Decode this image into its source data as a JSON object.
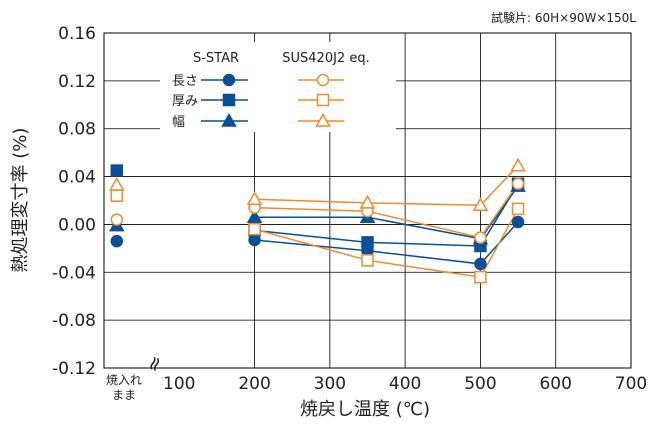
{
  "specimen_note": "試験片: 60H×90W×150L",
  "chart_data": {
    "type": "line",
    "xlabel": "焼戻し温度 (℃)",
    "ylabel": "熱処理変寸率 (%)",
    "xlim": [
      0,
      700
    ],
    "ylim": [
      -0.12,
      0.16
    ],
    "x_ticks": [
      "100",
      "200",
      "300",
      "400",
      "500",
      "600",
      "700"
    ],
    "y_ticks": [
      "0.16",
      "0.12",
      "0.08",
      "0.04",
      "0.00",
      "-0.04",
      "-0.08",
      "-0.12"
    ],
    "as_quenched_label_line1": "焼入れ",
    "as_quenched_label_line2": "まま",
    "axis_break_mark": "≈",
    "legend": {
      "group_headers": [
        "S-STAR",
        "SUS420J2 eq."
      ],
      "rows": [
        "長さ",
        "厚み",
        "幅"
      ]
    },
    "colors": {
      "S-STAR": "#0b4f96",
      "SUS420J2 eq.": "#ef8a2d"
    },
    "as_quenched": [
      {
        "material": "S-STAR",
        "measure": "長さ",
        "marker": "circle",
        "filled": true,
        "y": -0.014
      },
      {
        "material": "S-STAR",
        "measure": "厚み",
        "marker": "square",
        "filled": true,
        "y": 0.045
      },
      {
        "material": "S-STAR",
        "measure": "幅",
        "marker": "triangle",
        "filled": true,
        "y": -0.001
      },
      {
        "material": "SUS420J2 eq.",
        "measure": "長さ",
        "marker": "circle",
        "filled": false,
        "y": 0.004
      },
      {
        "material": "SUS420J2 eq.",
        "measure": "厚み",
        "marker": "square",
        "filled": false,
        "y": 0.024
      },
      {
        "material": "SUS420J2 eq.",
        "measure": "幅",
        "marker": "triangle",
        "filled": false,
        "y": 0.033
      }
    ],
    "series": [
      {
        "material": "S-STAR",
        "measure": "長さ",
        "marker": "circle",
        "filled": true,
        "x": [
          200,
          350,
          500,
          550
        ],
        "y": [
          -0.013,
          -0.022,
          -0.033,
          0.002
        ]
      },
      {
        "material": "S-STAR",
        "measure": "厚み",
        "marker": "square",
        "filled": true,
        "x": [
          200,
          350,
          500,
          550
        ],
        "y": [
          -0.005,
          -0.015,
          -0.018,
          0.034
        ]
      },
      {
        "material": "S-STAR",
        "measure": "幅",
        "marker": "triangle",
        "filled": true,
        "x": [
          200,
          350,
          500,
          550
        ],
        "y": [
          0.006,
          0.006,
          -0.012,
          0.032
        ]
      },
      {
        "material": "SUS420J2 eq.",
        "measure": "長さ",
        "marker": "circle",
        "filled": false,
        "x": [
          200,
          350,
          500,
          550
        ],
        "y": [
          0.014,
          0.011,
          -0.011,
          0.034
        ]
      },
      {
        "material": "SUS420J2 eq.",
        "measure": "厚み",
        "marker": "square",
        "filled": false,
        "x": [
          200,
          350,
          500,
          550
        ],
        "y": [
          -0.004,
          -0.03,
          -0.044,
          0.013
        ]
      },
      {
        "material": "SUS420J2 eq.",
        "measure": "幅",
        "marker": "triangle",
        "filled": false,
        "x": [
          200,
          350,
          500,
          550
        ],
        "y": [
          0.021,
          0.018,
          0.016,
          0.049
        ]
      }
    ],
    "grid": true
  }
}
